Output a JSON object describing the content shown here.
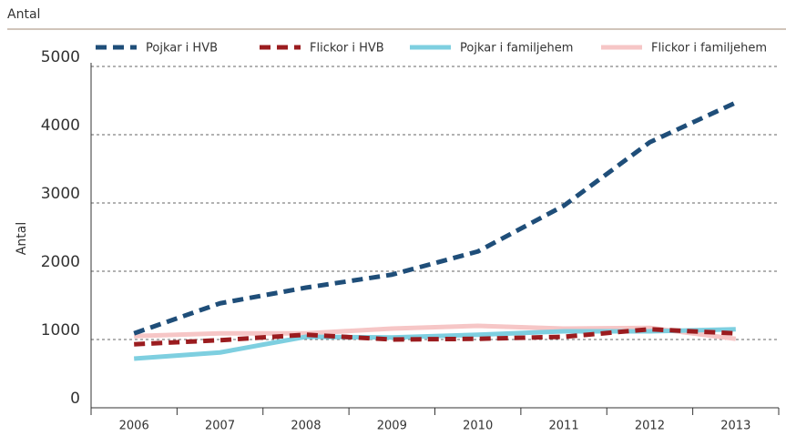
{
  "chart_data": {
    "type": "line",
    "title": "Antal",
    "y_label": "Antal",
    "categories": [
      "2006",
      "2007",
      "2008",
      "2009",
      "2010",
      "2011",
      "2012",
      "2013"
    ],
    "series": [
      {
        "name": "Pojkar i HVB",
        "color": "#1f4e79",
        "dashed": true,
        "values": [
          1090,
          1530,
          1760,
          1950,
          2290,
          2960,
          3890,
          4470
        ]
      },
      {
        "name": "Flickor i HVB",
        "color": "#9b1c1f",
        "dashed": true,
        "values": [
          930,
          990,
          1070,
          1000,
          1010,
          1040,
          1150,
          1090
        ]
      },
      {
        "name": "Pojkar i familjehem",
        "color": "#7ecfe0",
        "dashed": false,
        "values": [
          720,
          810,
          1040,
          1030,
          1070,
          1120,
          1120,
          1150
        ]
      },
      {
        "name": "Flickor i familjehem",
        "color": "#f6c6c6",
        "dashed": false,
        "values": [
          1050,
          1090,
          1090,
          1160,
          1200,
          1160,
          1170,
          1010
        ]
      }
    ],
    "ylim": [
      0,
      5000
    ],
    "yticks": [
      0,
      1000,
      2000,
      3000,
      4000,
      5000
    ],
    "grid": true,
    "legend": "top"
  }
}
